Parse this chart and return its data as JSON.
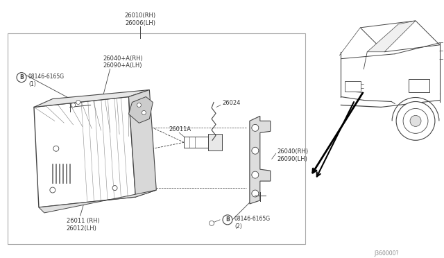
{
  "bg_color": "#ffffff",
  "line_color": "#444444",
  "text_color": "#333333",
  "box_border_color": "#999999",
  "ref_code": "J360000?",
  "top_label": [
    "26010(RH)",
    "26006(LH)"
  ],
  "label_lamp_adj": [
    "26040+A(RH)",
    "26090+A(LH)"
  ],
  "label_bolt1": "B",
  "label_bolt1_pn": "08146-6165G",
  "label_bolt1_num": "(1)",
  "label_bulb": "26011A",
  "label_wire": "26024",
  "label_bracket": [
    "26040(RH)",
    "26090(LH)"
  ],
  "label_lamp": [
    "26011 (RH)",
    "26012(LH)"
  ],
  "label_bolt2": "B",
  "label_bolt2_pn": "08146-6165G",
  "label_bolt2_num": "(2)"
}
